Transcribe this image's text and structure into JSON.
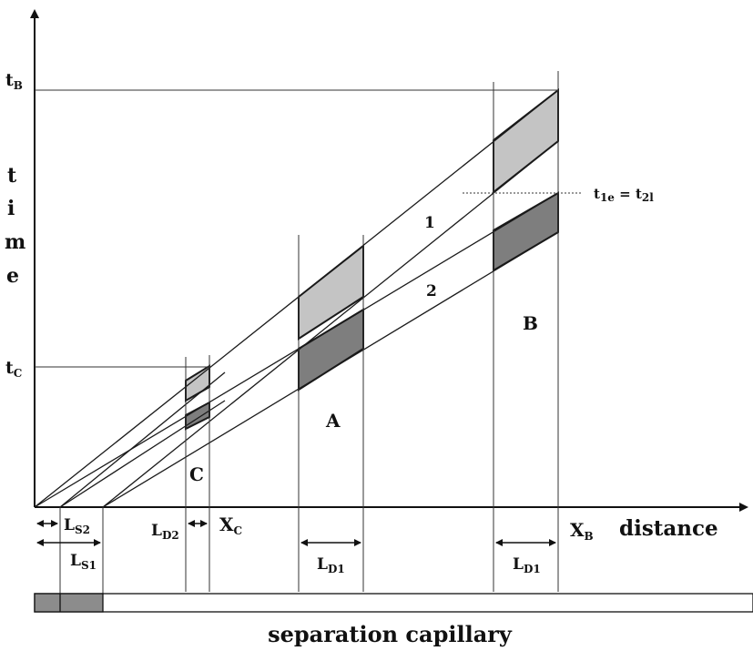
{
  "labels": {
    "t_b": {
      "main": "t",
      "sub": "B"
    },
    "t_c": {
      "main": "t",
      "sub": "C"
    },
    "time_letters": [
      "t",
      "i",
      "m",
      "e"
    ],
    "t1e_eq_t2l": {
      "a": "t",
      "a_sub": "1e",
      "eq": " = ",
      "b": "t",
      "b_sub": "2l"
    },
    "line_1": "1",
    "line_2": "2",
    "region_a": "A",
    "region_b": "B",
    "region_c": "C",
    "l_s2": {
      "main": "L",
      "sub": "S2"
    },
    "l_s1": {
      "main": "L",
      "sub": "S1"
    },
    "l_d2": {
      "main": "L",
      "sub": "D2"
    },
    "x_c": {
      "main": "X",
      "sub": "C"
    },
    "l_d1_a": {
      "main": "L",
      "sub": "D1"
    },
    "x_b": {
      "main": "X",
      "sub": "B"
    },
    "distance": "distance",
    "l_d1_b": {
      "main": "L",
      "sub": "D1"
    },
    "separation_capillary": "separation capillary"
  },
  "colors": {
    "light_zone": "#c4c4c4",
    "dark_zone": "#7e7e7e",
    "capillary_fill": "#8c8c8c"
  }
}
